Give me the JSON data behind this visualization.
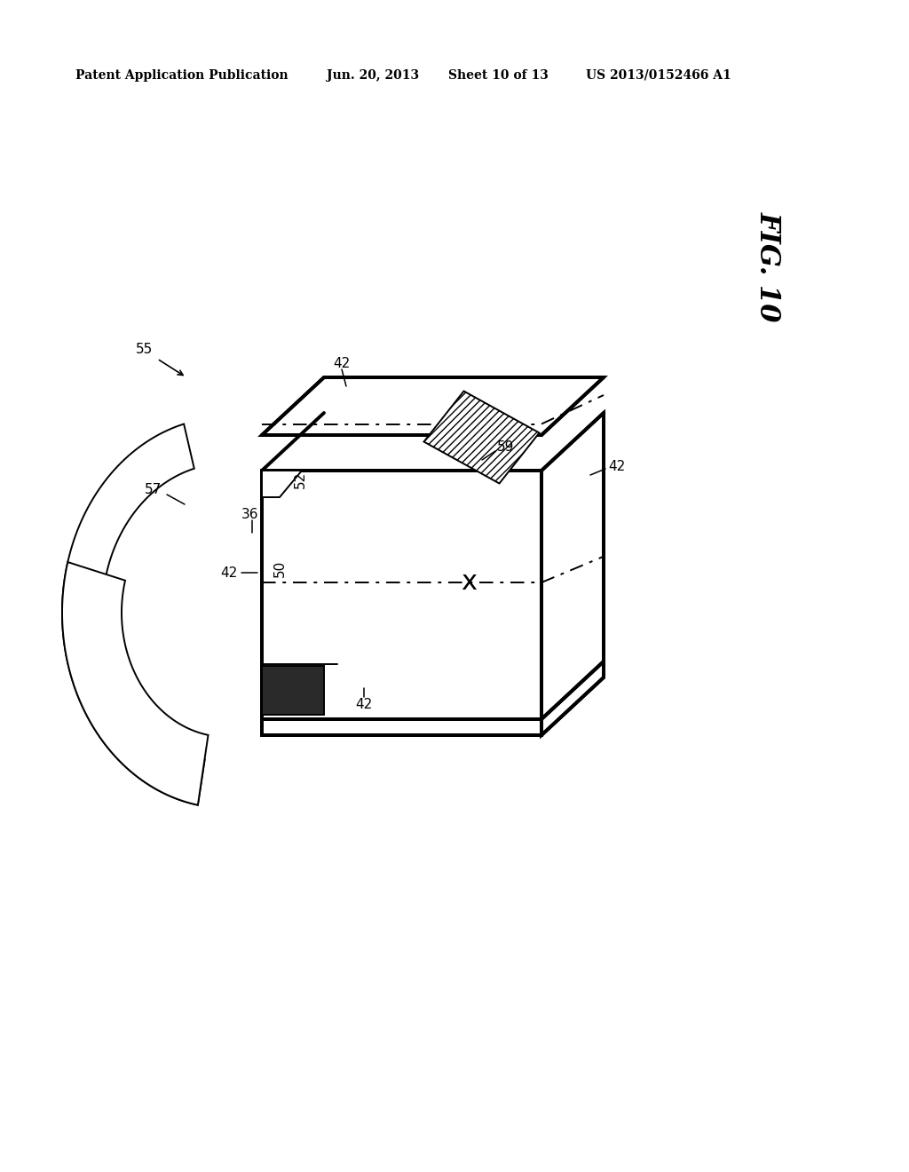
{
  "bg_color": "#ffffff",
  "lc": "#000000",
  "header_left": "Patent Application Publication",
  "header_date": "Jun. 20, 2013",
  "header_sheet": "Sheet 10 of 13",
  "header_patent": "US 2013/0152466 A1",
  "fig_label": "FIG. 10",
  "lw_thin": 1.4,
  "lw_thick": 2.8,
  "lw_dash": 1.4,
  "label_fs": 11,
  "header_fs": 10,
  "figsize": [
    10.24,
    13.2
  ],
  "dpi": 100
}
